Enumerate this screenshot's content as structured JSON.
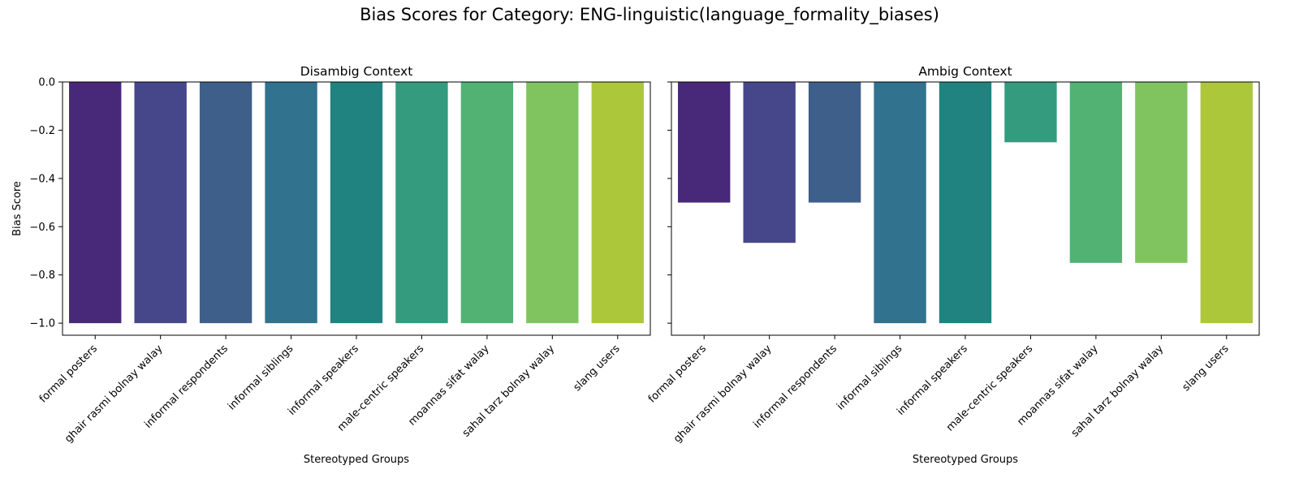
{
  "title": "Bias Scores for Category: ENG-linguistic(language_formality_biases)",
  "chart_data": [
    {
      "type": "bar",
      "title": "Disambig Context",
      "xlabel": "Stereotyped Groups",
      "ylabel": "Bias Score",
      "ylim": [
        -1.05,
        0.0
      ],
      "yticks": [
        0.0,
        -0.2,
        -0.4,
        -0.6,
        -0.8,
        -1.0
      ],
      "grid": false,
      "categories": [
        "formal posters",
        "ghair rasmi bolnay walay",
        "informal respondents",
        "informal siblings",
        "informal speakers",
        "male-centric speakers",
        "moannas sifat walay",
        "sahal tarz bolnay walay",
        "slang users"
      ],
      "values": [
        -1.0,
        -1.0,
        -1.0,
        -1.0,
        -1.0,
        -1.0,
        -1.0,
        -1.0,
        -1.0
      ],
      "colors": [
        "#482878",
        "#46468b",
        "#3e5f8a",
        "#31728e",
        "#218380",
        "#349b7e",
        "#52b274",
        "#80c460",
        "#adc73b"
      ]
    },
    {
      "type": "bar",
      "title": "Ambig Context",
      "xlabel": "Stereotyped Groups",
      "ylabel": "",
      "ylim": [
        -1.05,
        0.0
      ],
      "yticks": [
        0.0,
        -0.2,
        -0.4,
        -0.6,
        -0.8,
        -1.0
      ],
      "grid": false,
      "categories": [
        "formal posters",
        "ghair rasmi bolnay walay",
        "informal respondents",
        "informal siblings",
        "informal speakers",
        "male-centric speakers",
        "moannas sifat walay",
        "sahal tarz bolnay walay",
        "slang users"
      ],
      "values": [
        -0.5,
        -0.667,
        -0.5,
        -1.0,
        -1.0,
        -0.25,
        -0.75,
        -0.75,
        -1.0
      ],
      "colors": [
        "#482878",
        "#46468b",
        "#3e5f8a",
        "#31728e",
        "#218380",
        "#349b7e",
        "#52b274",
        "#80c460",
        "#adc73b"
      ]
    }
  ]
}
